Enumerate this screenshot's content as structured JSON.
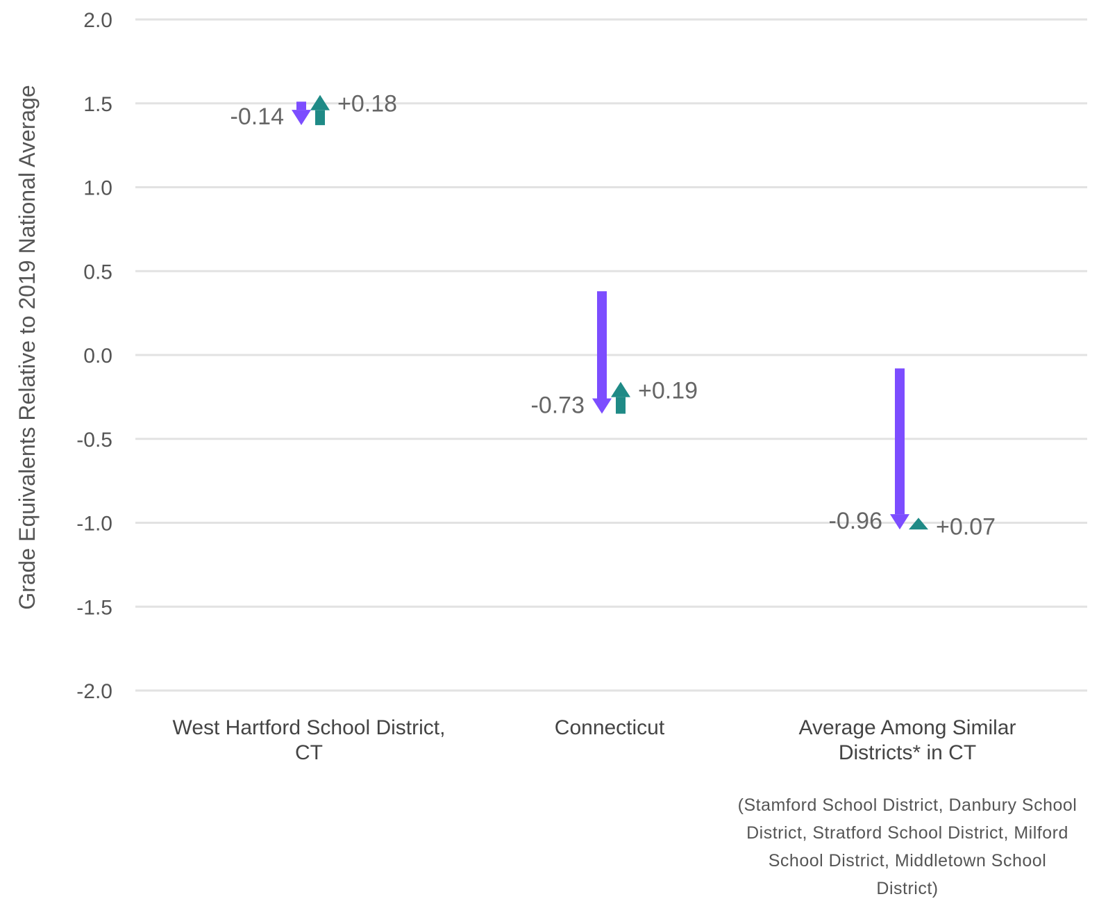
{
  "chart_data": {
    "type": "arrow",
    "ylabel": "Grade Equivalents Relative to 2019 National Average",
    "ylim": [
      -2.0,
      2.0
    ],
    "yticks": [
      {
        "value": 2.0,
        "label": "2.0"
      },
      {
        "value": 1.5,
        "label": "1.5"
      },
      {
        "value": 1.0,
        "label": "1.0"
      },
      {
        "value": 0.5,
        "label": "0.5"
      },
      {
        "value": 0.0,
        "label": "0.0"
      },
      {
        "value": -0.5,
        "label": "-0.5"
      },
      {
        "value": -1.0,
        "label": "-1.0"
      },
      {
        "value": -1.5,
        "label": "-1.5"
      },
      {
        "value": -2.0,
        "label": "-2.0"
      }
    ],
    "grid": true,
    "colors": {
      "decline": "#7c4dff",
      "recovery": "#1f8a86"
    },
    "categories": [
      {
        "label_lines": [
          "West Hartford School District,",
          "CT"
        ],
        "subtitle_lines": [],
        "start": 1.51,
        "decline": -0.14,
        "recovery": 0.18,
        "decline_label": "-0.14",
        "recovery_label": "+0.18"
      },
      {
        "label_lines": [
          "Connecticut"
        ],
        "subtitle_lines": [],
        "start": 0.38,
        "decline": -0.73,
        "recovery": 0.19,
        "decline_label": "-0.73",
        "recovery_label": "+0.19"
      },
      {
        "label_lines": [
          "Average Among Similar",
          "Districts* in CT"
        ],
        "subtitle_lines": [
          "(Stamford School District, Danbury School",
          "District, Stratford School District, Milford",
          "School District, Middletown School",
          "District)"
        ],
        "start": -0.08,
        "decline": -0.96,
        "recovery": 0.07,
        "decline_label": "-0.96",
        "recovery_label": "+0.07"
      }
    ]
  }
}
